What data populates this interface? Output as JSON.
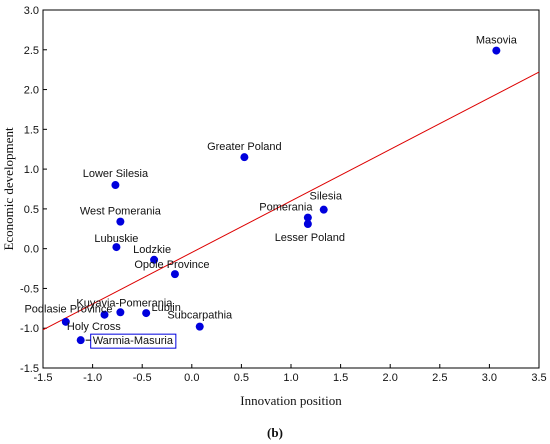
{
  "chart_data": {
    "type": "scatter",
    "xlabel": "Innovation position",
    "ylabel": "Economic development",
    "xlim": [
      -1.5,
      3.5
    ],
    "ylim": [
      -1.5,
      3.0
    ],
    "xticks": [
      "-1.5",
      "-1.0",
      "-0.5",
      "0.0",
      "0.5",
      "1.0",
      "1.5",
      "2.0",
      "2.5",
      "3.0",
      "3.5"
    ],
    "yticks": [
      "3.0",
      "2.5",
      "2.0",
      "1.5",
      "1.0",
      "0.5",
      "0.0",
      "-0.5",
      "-1.0",
      "-1.5"
    ],
    "grid": false,
    "point_color": "#0000dd",
    "trendline": {
      "color": "#dd0000",
      "x": [
        -1.5,
        3.5
      ],
      "y": [
        -1.02,
        2.22
      ]
    },
    "points": [
      {
        "label": "Masovia",
        "x": 3.07,
        "y": 2.49
      },
      {
        "label": "Greater Poland",
        "x": 0.53,
        "y": 1.15
      },
      {
        "label": "Lower Silesia",
        "x": -0.77,
        "y": 0.8
      },
      {
        "label": "Silesia",
        "x": 1.33,
        "y": 0.49
      },
      {
        "label": "Pomerania",
        "x": 1.17,
        "y": 0.39
      },
      {
        "label": "Lesser Poland",
        "x": 1.17,
        "y": 0.31
      },
      {
        "label": "West Pomerania",
        "x": -0.72,
        "y": 0.34
      },
      {
        "label": "Lubuskie",
        "x": -0.76,
        "y": 0.02
      },
      {
        "label": "Lodzkie",
        "x": -0.38,
        "y": -0.14
      },
      {
        "label": "Opole Province",
        "x": -0.17,
        "y": -0.32
      },
      {
        "label": "Kuyavia-Pomerania",
        "x": -0.72,
        "y": -0.8
      },
      {
        "label": "Lublin",
        "x": -0.46,
        "y": -0.81
      },
      {
        "label": "Podlasie Province",
        "x": -0.88,
        "y": -0.83
      },
      {
        "label": "Subcarpathia",
        "x": 0.08,
        "y": -0.98
      },
      {
        "label": "Holy Cross",
        "x": -1.27,
        "y": -0.92
      },
      {
        "label": "Warmia-Masuria",
        "x": -1.12,
        "y": -1.15,
        "boxed": true
      }
    ]
  },
  "caption": "(b)"
}
